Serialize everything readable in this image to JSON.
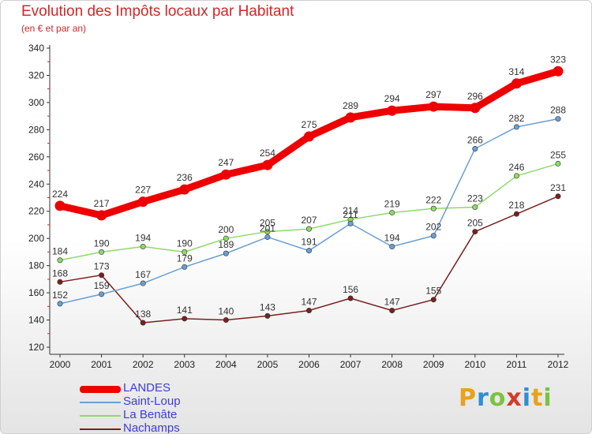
{
  "header": {
    "title": "Evolution des Impôts locaux par Habitant",
    "subtitle": "(en € et par an)"
  },
  "brand": {
    "letters": [
      "P",
      "r",
      "o",
      "x",
      "i",
      "t",
      "i"
    ],
    "colors": [
      "#e8a21c",
      "#2b8fd4",
      "#7cc242",
      "#d43b2a",
      "#2b8fd4",
      "#e8a21c",
      "#7cc242"
    ]
  },
  "chart_data": {
    "type": "line",
    "title": "Evolution des Impôts locaux par Habitant",
    "subtitle": "(en € et par an)",
    "xlabel": "",
    "ylabel": "",
    "categories": [
      "2000",
      "2001",
      "2002",
      "2003",
      "2004",
      "2005",
      "2006",
      "2007",
      "2008",
      "2009",
      "2010",
      "2011",
      "2012"
    ],
    "ylim": [
      120,
      340
    ],
    "yticks": [
      120,
      140,
      160,
      180,
      200,
      220,
      240,
      260,
      280,
      300,
      320,
      340
    ],
    "legend_position": "bottom-left",
    "grid": false,
    "series": [
      {
        "name": "LANDES",
        "color": "#ee0000",
        "values": [
          224,
          217,
          227,
          236,
          247,
          254,
          275,
          289,
          294,
          297,
          296,
          314,
          323
        ]
      },
      {
        "name": "Saint-Loup",
        "color": "#6a9fd3",
        "values": [
          152,
          159,
          167,
          179,
          189,
          201,
          191,
          211,
          194,
          202,
          266,
          282,
          288
        ]
      },
      {
        "name": "La Benâte",
        "color": "#8ed96a",
        "values": [
          184,
          190,
          194,
          190,
          200,
          205,
          207,
          214,
          219,
          222,
          223,
          246,
          255
        ]
      },
      {
        "name": "Nachamps",
        "color": "#7a2020",
        "values": [
          168,
          173,
          138,
          141,
          140,
          143,
          147,
          156,
          147,
          155,
          205,
          218,
          231
        ]
      }
    ]
  }
}
